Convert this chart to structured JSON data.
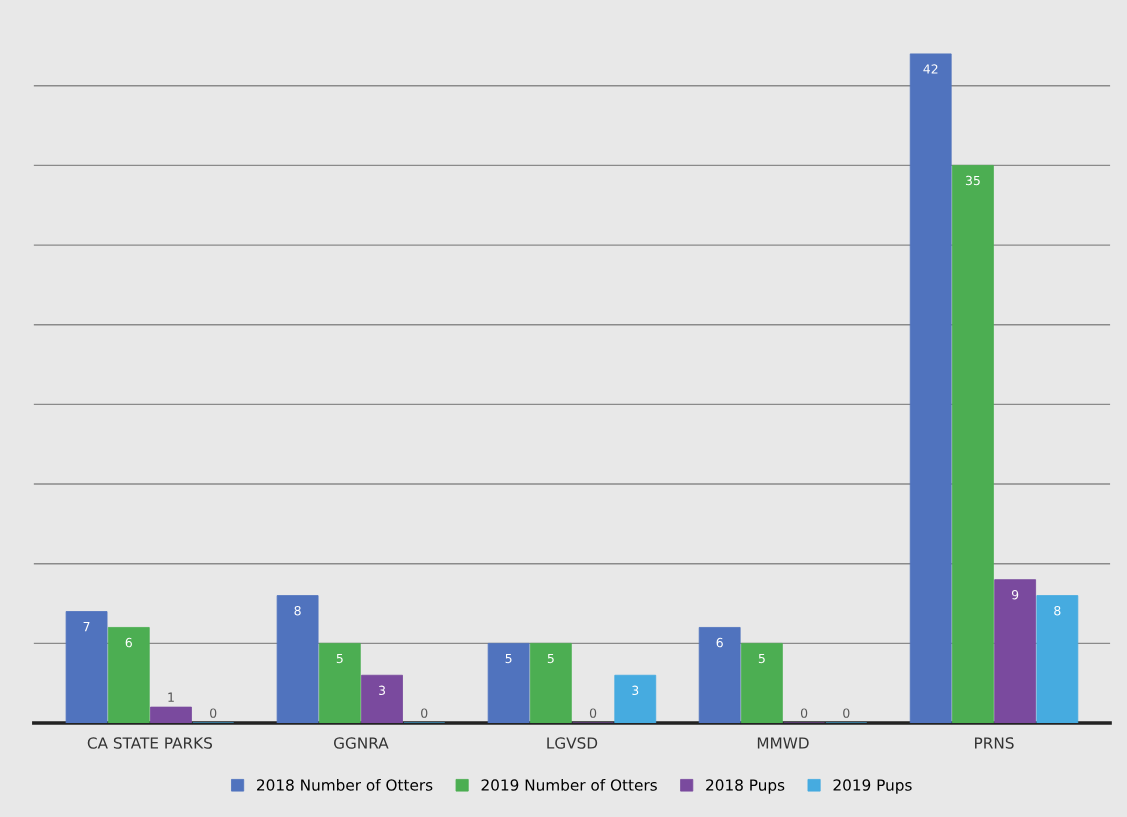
{
  "chart_data": {
    "type": "bar",
    "categories": [
      "CA STATE PARKS",
      "GGNRA",
      "LGVSD",
      "MMWD",
      "PRNS"
    ],
    "series": [
      {
        "name": "2018 Number of Otters",
        "color": "#5073be",
        "values": [
          7,
          8,
          5,
          6,
          42
        ]
      },
      {
        "name": "2019 Number of Otters",
        "color": "#4cae52",
        "values": [
          6,
          5,
          5,
          5,
          35
        ]
      },
      {
        "name": "2018 Pups",
        "color": "#7a4a9e",
        "values": [
          1,
          3,
          0,
          0,
          9
        ]
      },
      {
        "name": "2019 Pups",
        "color": "#46abe0",
        "values": [
          0,
          0,
          3,
          0,
          8
        ]
      }
    ],
    "yticks": [
      {
        "value": 0,
        "label": null
      },
      {
        "value": 5,
        "label": null
      },
      {
        "value": 10,
        "label": null
      },
      {
        "value": 15,
        "label": null
      },
      {
        "value": 20,
        "label": null
      },
      {
        "value": 25,
        "label": null
      },
      {
        "value": 30,
        "label": null
      },
      {
        "value": 35,
        "label": null
      },
      {
        "value": 40,
        "label": null
      }
    ],
    "tick_labels": "x",
    "grid": "y",
    "legend": "bottom",
    "data_labels": true
  }
}
